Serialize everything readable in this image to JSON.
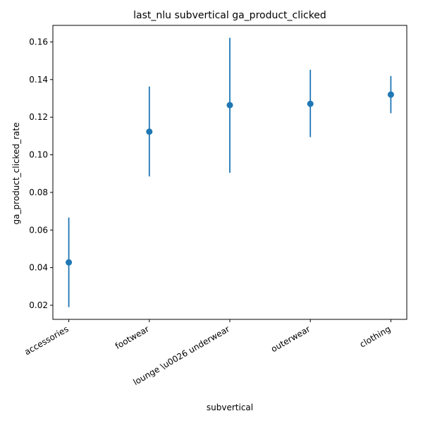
{
  "chart_data": {
    "type": "scatter",
    "title": "last_nlu subvertical ga_product_clicked",
    "xlabel": "subvertical",
    "ylabel": "ga_product_clicked_rate",
    "categories": [
      "accessories",
      "footwear",
      "lounge \\u0026 underwear",
      "outerwear",
      "clothing"
    ],
    "series": [
      {
        "values": [
          0.0428,
          0.1123,
          0.1264,
          0.1271,
          0.132
        ],
        "lower": [
          0.019,
          0.0885,
          0.0904,
          0.1094,
          0.1221
        ],
        "upper": [
          0.0666,
          0.1363,
          0.1622,
          0.1452,
          0.1419
        ]
      }
    ],
    "ylim": [
      0.0125,
      0.1688
    ],
    "yticks": [
      0.02,
      0.04,
      0.06,
      0.08,
      0.1,
      0.12,
      0.14,
      0.16
    ],
    "ytick_labels": [
      "0.02",
      "0.04",
      "0.06",
      "0.08",
      "0.10",
      "0.12",
      "0.14",
      "0.16"
    ],
    "grid": false,
    "color": "#1f77b4"
  }
}
